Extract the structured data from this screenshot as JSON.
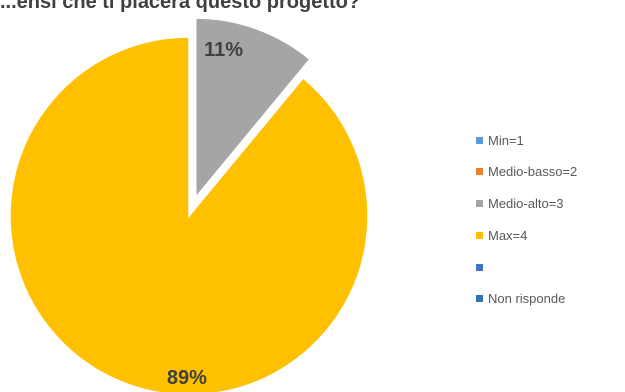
{
  "chart_data": {
    "type": "pie",
    "title": "...ensi che ti piacerà questo progetto?",
    "categories": [
      "Min=1",
      "Medio-basso=2",
      "Medio-alto=3",
      "Max=4",
      "",
      "Non risponde"
    ],
    "values": [
      0,
      0,
      11,
      89,
      0,
      0
    ],
    "data_labels": [
      "",
      "",
      "11%",
      "89%",
      "",
      ""
    ],
    "colors": [
      "#5B9BD5",
      "#ED7D31",
      "#A5A5A5",
      "#FFC000",
      "#4472C4",
      "#2E75B6"
    ],
    "exploded_slice": "Medio-alto=3",
    "start_angle": "12 o'clock, clockwise",
    "legend_position": "right"
  }
}
